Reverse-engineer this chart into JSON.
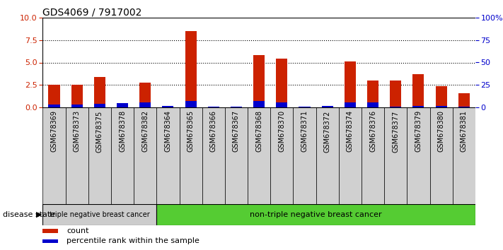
{
  "title": "GDS4069 / 7917002",
  "samples": [
    "GSM678369",
    "GSM678373",
    "GSM678375",
    "GSM678378",
    "GSM678382",
    "GSM678364",
    "GSM678365",
    "GSM678366",
    "GSM678367",
    "GSM678368",
    "GSM678370",
    "GSM678371",
    "GSM678372",
    "GSM678374",
    "GSM678376",
    "GSM678377",
    "GSM678379",
    "GSM678380",
    "GSM678381"
  ],
  "count_values": [
    2.5,
    2.5,
    3.4,
    0.0,
    2.8,
    0.2,
    8.5,
    0.0,
    0.1,
    5.8,
    5.4,
    0.1,
    0.2,
    5.1,
    3.0,
    3.0,
    3.7,
    2.4,
    1.6
  ],
  "percentile_values": [
    3.0,
    3.0,
    4.0,
    5.0,
    6.0,
    1.5,
    7.0,
    1.0,
    1.0,
    7.0,
    6.0,
    1.0,
    2.0,
    6.0,
    6.0,
    1.0,
    2.0,
    2.0,
    1.0
  ],
  "count_color": "#cc2200",
  "percentile_color": "#0000cc",
  "group1_label": "triple negative breast cancer",
  "group2_label": "non-triple negative breast cancer",
  "group1_count": 5,
  "group2_count": 14,
  "group1_bg": "#cccccc",
  "group2_bg": "#55cc33",
  "ylim_left": [
    0,
    10
  ],
  "ylim_right": [
    0,
    100
  ],
  "yticks_left": [
    0,
    2.5,
    5.0,
    7.5,
    10
  ],
  "yticks_right": [
    0,
    25,
    50,
    75,
    100
  ],
  "grid_values": [
    2.5,
    5.0,
    7.5
  ],
  "disease_state_label": "disease state"
}
